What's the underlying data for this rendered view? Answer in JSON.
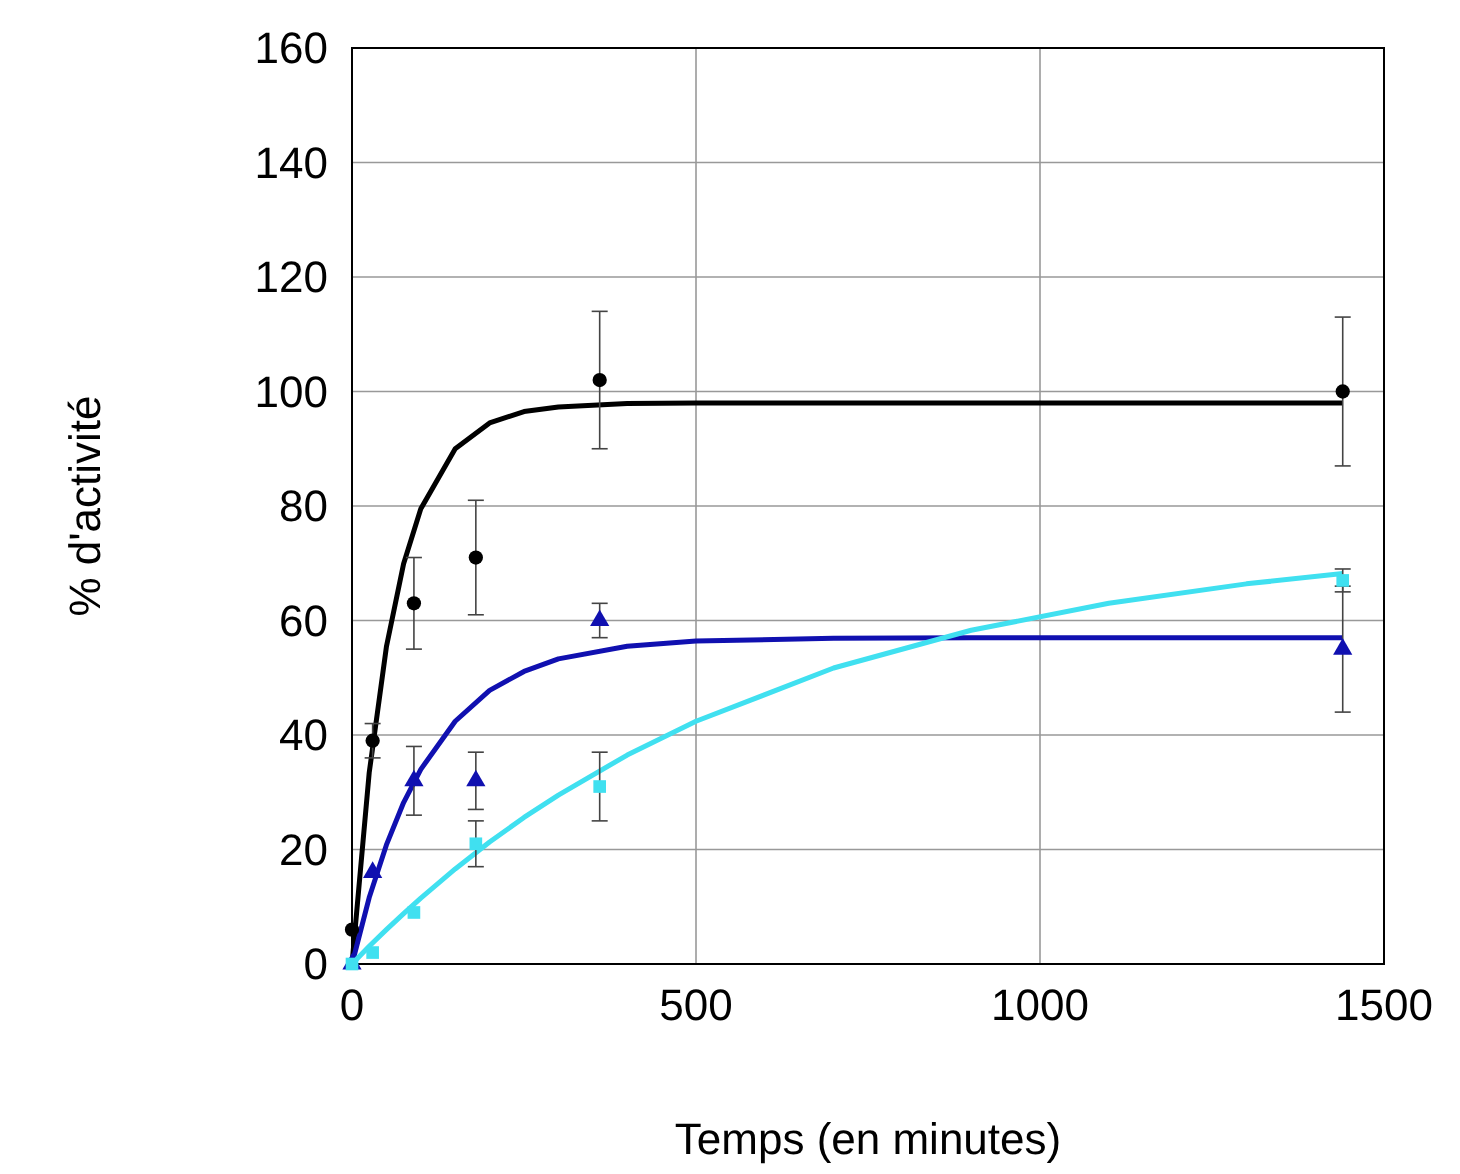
{
  "chart_data": {
    "type": "scatter",
    "xlabel": "Temps (en minutes)",
    "ylabel": "% d'activité",
    "xlim": [
      0,
      1500
    ],
    "xticks": [
      0,
      500,
      1000,
      1500
    ],
    "ylim": [
      0,
      160
    ],
    "yticks": [
      0,
      20,
      40,
      60,
      80,
      100,
      120,
      140,
      160
    ],
    "grid": true,
    "series": [
      {
        "type": "line",
        "color": "#000000",
        "marker": "none",
        "x": [
          0,
          25,
          50,
          75,
          100,
          150,
          200,
          250,
          300,
          400,
          500,
          700,
          900,
          1100,
          1300,
          1440
        ],
        "values": [
          0,
          33.4,
          55.4,
          69.9,
          79.5,
          90,
          94.5,
          96.5,
          97.3,
          97.9,
          98,
          98,
          98,
          98,
          98,
          98
        ]
      },
      {
        "type": "line",
        "color": "#1010b0",
        "marker": "none",
        "x": [
          0,
          25,
          50,
          75,
          100,
          150,
          200,
          250,
          300,
          400,
          500,
          700,
          900,
          1100,
          1300,
          1440
        ],
        "values": [
          0,
          11.6,
          20.8,
          28.2,
          34,
          42.4,
          47.8,
          51.1,
          53.3,
          55.5,
          56.4,
          56.9,
          57,
          57,
          57,
          57
        ]
      },
      {
        "type": "line",
        "color": "#40e0f0",
        "marker": "none",
        "x": [
          0,
          25,
          50,
          75,
          100,
          150,
          200,
          250,
          300,
          400,
          500,
          700,
          900,
          1100,
          1300,
          1440
        ],
        "values": [
          0,
          3.1,
          6,
          8.8,
          11.5,
          16.6,
          21.3,
          25.6,
          29.5,
          36.5,
          42.4,
          51.7,
          58.3,
          63,
          66.4,
          68.2
        ]
      },
      {
        "color": "#000000",
        "marker": "circle",
        "x": [
          0,
          30,
          90,
          180,
          360,
          1440
        ],
        "values": [
          6,
          39,
          63,
          71,
          102,
          100
        ],
        "errors": [
          null,
          3,
          8,
          10,
          12,
          13
        ]
      },
      {
        "color": "#1010b0",
        "marker": "triangle",
        "x": [
          0,
          30,
          90,
          180,
          360,
          1440
        ],
        "values": [
          0,
          16,
          32,
          32,
          60,
          55
        ],
        "errors": [
          null,
          null,
          6,
          5,
          3,
          11
        ]
      },
      {
        "color": "#40e0f0",
        "marker": "square",
        "x": [
          0,
          30,
          90,
          180,
          360,
          1440
        ],
        "values": [
          0,
          2,
          9,
          21,
          31,
          67
        ],
        "errors": [
          null,
          null,
          null,
          4,
          6,
          2
        ]
      }
    ]
  }
}
